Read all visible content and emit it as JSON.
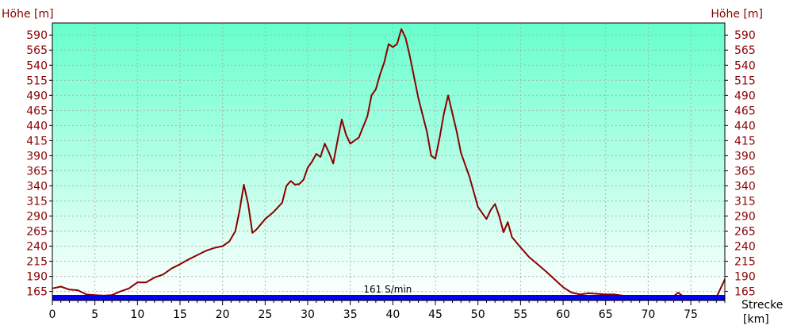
{
  "chart_data": {
    "type": "area",
    "y_title_left": "Höhe [m]",
    "y_title_right": "Höhe [m]",
    "x_title_line1": "Strecke",
    "x_title_line2": "[km]",
    "speed_label": "161 S/min",
    "xlim": [
      0,
      79
    ],
    "ylim": [
      150,
      610
    ],
    "x_ticks": [
      0,
      5,
      10,
      15,
      20,
      25,
      30,
      35,
      40,
      45,
      50,
      55,
      60,
      65,
      70,
      75
    ],
    "y_ticks": [
      165,
      190,
      215,
      240,
      265,
      290,
      315,
      340,
      365,
      390,
      415,
      440,
      465,
      490,
      515,
      540,
      565,
      590
    ],
    "grid": true,
    "colors": {
      "fill_top": "#66ffcc",
      "fill_bottom": "#ffffff",
      "line": "#8b0000",
      "bar": "#0000ee",
      "grid": "#b0b0b0"
    },
    "x": [
      0,
      1,
      2,
      3,
      4,
      5,
      6,
      7,
      8,
      9,
      10,
      11,
      12,
      13,
      14,
      15,
      16,
      17,
      18,
      19,
      20,
      20.8,
      21.5,
      22,
      22.5,
      23,
      23.5,
      24,
      25,
      26,
      27,
      27.5,
      28,
      28.5,
      29,
      29.5,
      30,
      30.5,
      31,
      31.5,
      32,
      32.5,
      33,
      33.5,
      34,
      34.5,
      35,
      36,
      37,
      37.5,
      38,
      38.5,
      39,
      39.5,
      40,
      40.5,
      41,
      41.5,
      42,
      43,
      44,
      44.5,
      45,
      45.5,
      46,
      46.5,
      47,
      47.5,
      48,
      49,
      50,
      51,
      51.5,
      52,
      52.5,
      53,
      53.5,
      54,
      55,
      56,
      57,
      58,
      59,
      60,
      61,
      62,
      63,
      64,
      65,
      66,
      67,
      68,
      69,
      70,
      71,
      72,
      73,
      73.5,
      74,
      75,
      76,
      77,
      78,
      79
    ],
    "y": [
      170,
      173,
      168,
      167,
      160,
      159,
      158,
      159,
      165,
      170,
      180,
      180,
      188,
      193,
      203,
      210,
      218,
      225,
      232,
      237,
      240,
      248,
      265,
      300,
      342,
      310,
      262,
      268,
      285,
      297,
      312,
      340,
      348,
      342,
      343,
      350,
      370,
      380,
      393,
      388,
      410,
      395,
      377,
      415,
      450,
      425,
      410,
      420,
      455,
      490,
      500,
      525,
      545,
      575,
      570,
      575,
      600,
      585,
      555,
      485,
      430,
      390,
      385,
      420,
      460,
      490,
      460,
      430,
      395,
      355,
      305,
      285,
      300,
      310,
      290,
      263,
      280,
      255,
      238,
      222,
      210,
      198,
      185,
      172,
      163,
      160,
      162,
      161,
      160,
      160,
      158,
      155,
      155,
      157,
      155,
      156,
      157,
      163,
      158,
      157,
      155,
      158,
      155,
      185
    ]
  }
}
